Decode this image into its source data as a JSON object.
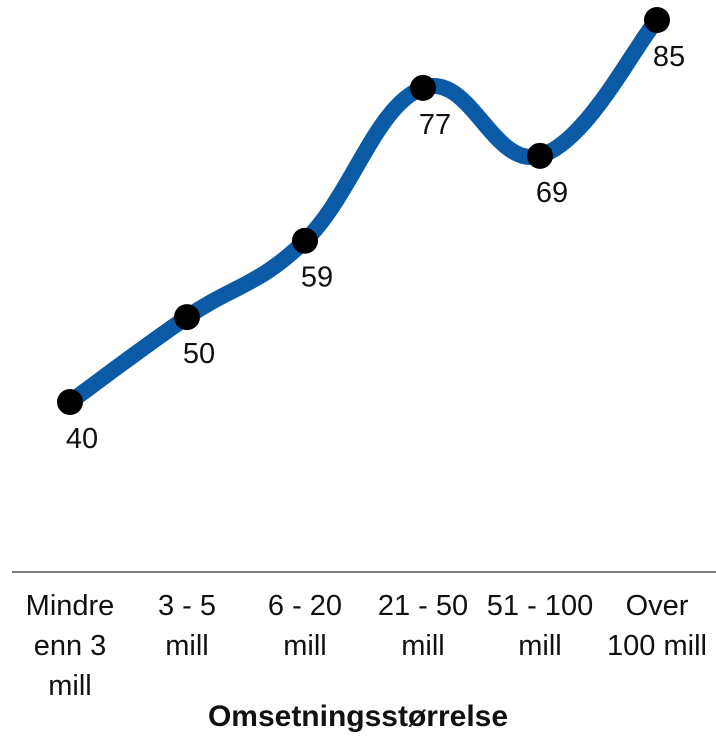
{
  "chart_data": {
    "type": "line",
    "categories": [
      "Mindre enn 3 mill",
      "3 - 5 mill",
      "6 - 20 mill",
      "21 - 50 mill",
      "51 - 100 mill",
      "Over 100 mill"
    ],
    "category_lines": [
      [
        "Mindre",
        "enn 3",
        "mill"
      ],
      [
        "3 - 5",
        "mill"
      ],
      [
        "6 - 20",
        "mill"
      ],
      [
        "21 - 50",
        "mill"
      ],
      [
        "51 - 100",
        "mill"
      ],
      [
        "Over",
        "100 mill"
      ]
    ],
    "values": [
      40,
      50,
      59,
      77,
      69,
      85
    ],
    "xlabel": "Omsetningsstørrelse",
    "line_color": "#0b5aa6",
    "marker_color": "#000000",
    "grid": false,
    "smooth": true
  }
}
